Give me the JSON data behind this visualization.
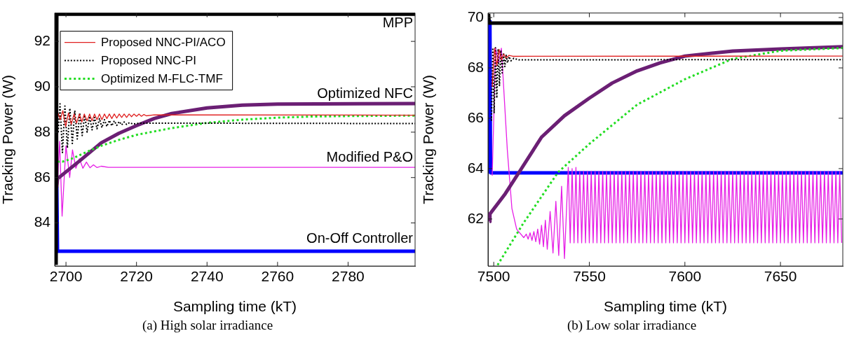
{
  "chart_data": [
    {
      "type": "line",
      "title": "(a) High solar irradiance",
      "xlabel": "Sampling time (kT)",
      "ylabel": "Tracking Power (W)",
      "xlim": [
        2696.8,
        2799
      ],
      "ylim": [
        82.1,
        93.25
      ],
      "xticks": [
        2700,
        2720,
        2740,
        2760,
        2780
      ],
      "yticks": [
        84,
        86,
        88,
        90,
        92
      ],
      "legend": "top left",
      "annotations": [
        "MPP",
        "Optimized NFC",
        "Modified P&O",
        "On-Off Controller"
      ],
      "series": [
        {
          "color": "#000000",
          "line_style": "solid",
          "x": [
            2697.2,
            2697.4,
            2799
          ],
          "values": [
            82.15,
            93.2,
            93.2
          ]
        },
        {
          "name": "Proposed NNC-PI/ACO",
          "color": "#e02020",
          "line_style": "solid",
          "x": [
            2697.6,
            2698.4,
            2699.1,
            2699.9,
            2700.7,
            2701.5,
            2702.3,
            2703,
            2703.8,
            2704.5,
            2705.2,
            2706,
            2706.7,
            2707.4,
            2708.1,
            2708.8,
            2709.5,
            2710.2,
            2710.9,
            2711.6,
            2712.3,
            2713,
            2713.7,
            2714.4,
            2715.1,
            2715.8,
            2716.5,
            2717.2,
            2717.9,
            2718.6,
            2719.3,
            2720,
            2720.7,
            2721.4,
            2722.1,
            2722.8,
            2725,
            2799
          ],
          "values": [
            88.9,
            88.55,
            88.95,
            88.25,
            88.85,
            88.35,
            88.8,
            88.4,
            88.8,
            88.45,
            88.8,
            88.5,
            88.8,
            88.5,
            88.8,
            88.55,
            88.8,
            88.55,
            88.8,
            88.6,
            88.8,
            88.6,
            88.8,
            88.62,
            88.8,
            88.65,
            88.8,
            88.65,
            88.8,
            88.68,
            88.8,
            88.7,
            88.8,
            88.7,
            88.78,
            88.72,
            88.76,
            88.75
          ]
        },
        {
          "name": "Proposed NNC-PI",
          "color": "#000000",
          "line_style": "dotted",
          "x": [
            2697.8,
            2698.3,
            2699,
            2699.7,
            2700.4,
            2701.1,
            2701.8,
            2702.5,
            2703.2,
            2703.9,
            2704.6,
            2705.3,
            2706,
            2706.7,
            2707.4,
            2708.1,
            2708.8,
            2709.5,
            2710.2,
            2710.9,
            2711.6,
            2712.3,
            2713,
            2713.7,
            2714.4,
            2715.1,
            2715.8,
            2716.5,
            2717.2,
            2718,
            2719,
            2721,
            2799
          ],
          "values": [
            88.0,
            89.25,
            87.1,
            89.15,
            87.3,
            89.05,
            87.5,
            88.95,
            87.7,
            88.85,
            87.85,
            88.75,
            88.0,
            88.7,
            88.1,
            88.65,
            88.15,
            88.6,
            88.2,
            88.55,
            88.25,
            88.52,
            88.28,
            88.5,
            88.3,
            88.47,
            88.32,
            88.45,
            88.34,
            88.42,
            88.36,
            88.4,
            88.38
          ]
        },
        {
          "name": "Optimized M-FLC-TMF",
          "color": "#22dd22",
          "line_style": "dotted",
          "x": [
            2697.6,
            2699,
            2702,
            2705,
            2710,
            2715,
            2720,
            2730,
            2740,
            2750,
            2760,
            2770,
            2780,
            2799
          ],
          "values": [
            86.7,
            86.7,
            86.85,
            87.07,
            87.4,
            87.66,
            87.88,
            88.18,
            88.41,
            88.55,
            88.64,
            88.69,
            88.71,
            88.73
          ]
        },
        {
          "color": "#6b1f74",
          "line_style": "solid",
          "x": [
            2697.3,
            2697.4,
            2697.6,
            2700,
            2704,
            2710,
            2715,
            2720,
            2725,
            2730,
            2740,
            2750,
            2760,
            2799
          ],
          "values": [
            88.85,
            85.6,
            85.95,
            86.25,
            86.75,
            87.53,
            87.95,
            88.29,
            88.6,
            88.82,
            89.07,
            89.19,
            89.24,
            89.26
          ]
        },
        {
          "color": "#e61ee6",
          "line_style": "solid",
          "x": [
            2697.6,
            2698.2,
            2698.9,
            2700,
            2701.05,
            2701.85,
            2702.8,
            2703.8,
            2704.8,
            2705.8,
            2706.8,
            2707.8,
            2708.8,
            2710,
            2712,
            2799
          ],
          "values": [
            85.8,
            87.6,
            84.3,
            87.4,
            86.0,
            87.22,
            86.41,
            86.83,
            86.41,
            86.68,
            86.43,
            86.56,
            86.44,
            86.5,
            86.45,
            86.45
          ]
        },
        {
          "color": "#0000ff",
          "line_style": "solid",
          "x": [
            2697.4,
            2697.6,
            2799
          ],
          "values": [
            85.6,
            82.75,
            82.75
          ]
        }
      ]
    },
    {
      "type": "line",
      "title": "(b) Low solar irradiance",
      "xlabel": "Sampling time (kT)",
      "ylabel": "Tracking Power (W)",
      "xlim": [
        7497,
        7682.6
      ],
      "ylim": [
        60.13,
        70.18
      ],
      "xticks": [
        7500,
        7550,
        7600,
        7650
      ],
      "yticks": [
        62,
        64,
        66,
        68,
        70
      ],
      "series": [
        {
          "color": "#000000",
          "line_style": "solid",
          "x": [
            7497.3,
            7497.6,
            7682.6
          ],
          "values": [
            70.15,
            69.78,
            69.78
          ]
        },
        {
          "color": "#e02020",
          "line_style": "solid",
          "x": [
            7499.2,
            7500.4,
            7501.6,
            7502.8,
            7504,
            7505.2,
            7506.5,
            7508,
            7510,
            7682.6
          ],
          "values": [
            67.25,
            68.78,
            68.09,
            68.74,
            68.32,
            68.55,
            68.4,
            68.5,
            68.46,
            68.47
          ]
        },
        {
          "color": "#000000",
          "line_style": "dotted",
          "x": [
            7498.8,
            7499.5,
            7500.2,
            7500.9,
            7501.6,
            7502.3,
            7503,
            7503.7,
            7504.4,
            7505.1,
            7505.8,
            7506.5,
            7507.2,
            7508,
            7509,
            7510.5,
            7513,
            7682.6
          ],
          "values": [
            65.9,
            68.8,
            66.2,
            68.8,
            66.8,
            68.75,
            67.3,
            68.7,
            67.8,
            68.6,
            68.05,
            68.5,
            68.2,
            68.45,
            68.28,
            68.38,
            68.32,
            68.33
          ]
        },
        {
          "color": "#22dd22",
          "line_style": "dotted",
          "x": [
            7502,
            7515.4,
            7533.7,
            7550,
            7575,
            7600,
            7625,
            7650,
            7682.6
          ],
          "values": [
            60.17,
            61.82,
            63.86,
            64.98,
            66.54,
            67.55,
            68.36,
            68.68,
            68.79
          ]
        },
        {
          "color": "#6b1f74",
          "line_style": "solid",
          "x": [
            7497.8,
            7498,
            7506,
            7513.3,
            7525,
            7537,
            7550,
            7562,
            7575,
            7587,
            7600,
            7625,
            7650,
            7682.6
          ],
          "values": [
            61.9,
            62.2,
            63.0,
            63.86,
            65.25,
            66.1,
            66.8,
            67.4,
            67.88,
            68.2,
            68.47,
            68.67,
            68.75,
            68.84
          ]
        },
        {
          "color": "#e61ee6",
          "line_style": "solid",
          "x": [
            7499.2,
            7501,
            7502.5,
            7504,
            7507.1,
            7509.5,
            7512,
            7515.7,
            7517,
            7518,
            7519,
            7520,
            7521,
            7522,
            7523,
            7524,
            7525,
            7526,
            7527,
            7528,
            7529.5,
            7531,
            7532.5,
            7534,
            7535.5,
            7537,
            7539,
            7540,
            7541,
            7542,
            7543,
            7544,
            7545,
            7546,
            7547,
            7548,
            7549,
            7550,
            7551,
            7552,
            7553,
            7554,
            7555,
            7556,
            7557,
            7558,
            7559,
            7560,
            7561,
            7562,
            7563,
            7564,
            7565,
            7566,
            7567,
            7568,
            7569,
            7570,
            7571,
            7572,
            7573,
            7574,
            7575,
            7576,
            7577,
            7578,
            7579,
            7580,
            7581,
            7582,
            7583,
            7584,
            7585,
            7586,
            7587,
            7588,
            7589,
            7590,
            7591,
            7592,
            7593,
            7594,
            7595,
            7596,
            7597,
            7598,
            7599,
            7600,
            7601,
            7602,
            7603,
            7604,
            7605,
            7606,
            7607,
            7608,
            7609,
            7610,
            7611,
            7612,
            7613,
            7614,
            7615,
            7616,
            7617,
            7618,
            7619,
            7620,
            7621,
            7622,
            7623,
            7624,
            7625,
            7626,
            7627,
            7628,
            7629,
            7630,
            7631,
            7632,
            7633,
            7634,
            7635,
            7636,
            7637,
            7638,
            7639,
            7640,
            7641,
            7642,
            7643,
            7644,
            7645,
            7646,
            7647,
            7648,
            7649,
            7650,
            7651,
            7652,
            7653,
            7654,
            7655,
            7656,
            7657,
            7658,
            7659,
            7660,
            7661,
            7662,
            7663,
            7664,
            7665,
            7666,
            7667,
            7668,
            7669,
            7670,
            7671,
            7672,
            7673,
            7674,
            7675,
            7676,
            7677,
            7678,
            7679,
            7680,
            7681,
            7682
          ],
          "values": [
            63.72,
            68.78,
            68.2,
            68.78,
            64.74,
            62.42,
            61.59,
            61.26,
            61.4,
            61.2,
            61.45,
            61.15,
            61.5,
            61.1,
            61.6,
            61.0,
            61.75,
            60.9,
            61.95,
            60.8,
            62.3,
            60.65,
            62.7,
            60.55,
            63.3,
            60.43,
            64.05,
            61.05,
            64,
            61.05,
            64.05,
            61.05,
            63.9,
            61.05,
            63.9,
            61.05,
            63.9,
            61.05,
            63.9,
            61.05,
            63.9,
            61.05,
            63.9,
            61.05,
            63.9,
            61.05,
            63.9,
            61.05,
            63.9,
            61.05,
            63.9,
            61.05,
            63.9,
            61.05,
            63.9,
            61.05,
            63.9,
            61.05,
            63.9,
            61.05,
            63.9,
            61.05,
            63.9,
            61.05,
            63.9,
            61.05,
            63.9,
            61.05,
            63.9,
            61.05,
            63.9,
            61.05,
            63.9,
            61.05,
            63.9,
            61.05,
            63.9,
            61.05,
            63.9,
            61.05,
            63.9,
            61.05,
            63.9,
            61.05,
            63.9,
            61.05,
            63.9,
            61.05,
            63.9,
            61.05,
            63.9,
            61.05,
            63.9,
            61.05,
            63.9,
            61.05,
            63.9,
            61.05,
            63.9,
            61.05,
            63.9,
            61.05,
            63.9,
            61.05,
            63.9,
            61.05,
            63.9,
            61.05,
            63.9,
            61.05,
            63.9,
            61.05,
            63.9,
            61.05,
            63.9,
            61.05,
            63.9,
            61.05,
            63.9,
            61.05,
            63.9,
            61.05,
            63.9,
            61.05,
            63.9,
            61.05,
            63.9,
            61.05,
            63.9,
            61.05,
            63.9,
            61.05,
            63.9,
            61.05,
            63.9,
            61.05,
            63.9,
            61.05,
            63.9,
            61.05,
            63.9,
            61.05,
            63.9,
            61.05,
            63.9,
            61.05,
            63.9,
            61.05,
            63.9,
            61.05,
            63.9,
            61.05,
            63.9,
            61.05,
            63.9,
            61.05,
            63.9,
            61.05,
            63.9,
            61.05,
            63.9,
            61.05,
            63.9,
            61.05,
            63.9,
            61.05,
            63.9,
            61.05,
            63.9,
            61.05
          ]
        },
        {
          "color": "#0000ff",
          "line_style": "solid",
          "x": [
            7498,
            7498.3,
            7682.6
          ],
          "values": [
            69.9,
            63.83,
            63.83
          ]
        }
      ]
    }
  ]
}
